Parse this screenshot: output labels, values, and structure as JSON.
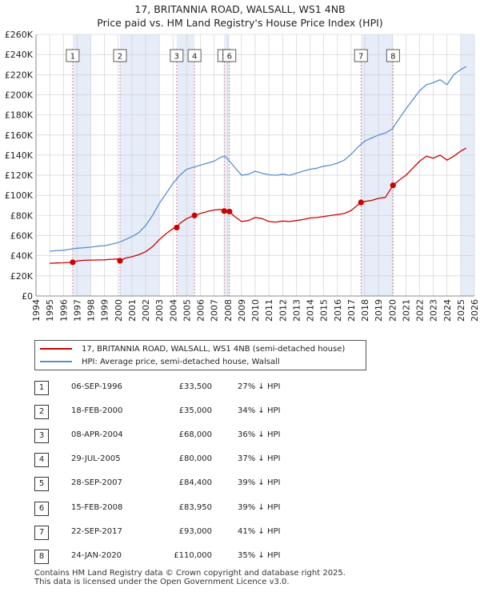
{
  "title_line1": "17, BRITANNIA ROAD, WALSALL, WS1 4NB",
  "title_line2": "Price paid vs. HM Land Registry's House Price Index (HPI)",
  "colors": {
    "property": "#cc0000",
    "hpi": "#5b8fd0",
    "shade": "#e6edf8",
    "marker_line": "#e07070"
  },
  "legend": {
    "property_label": "17, BRITANNIA ROAD, WALSALL, WS1 4NB (semi-detached house)",
    "hpi_label": "HPI: Average price, semi-detached house, Walsall"
  },
  "chart_data": {
    "type": "line",
    "xlim": [
      1994,
      2026
    ],
    "ylim": [
      0,
      260000
    ],
    "y_ticks": [
      0,
      20000,
      40000,
      60000,
      80000,
      100000,
      120000,
      140000,
      160000,
      180000,
      200000,
      220000,
      240000,
      260000
    ],
    "y_tick_labels": [
      "£0",
      "£20K",
      "£40K",
      "£60K",
      "£80K",
      "£100K",
      "£120K",
      "£140K",
      "£160K",
      "£180K",
      "£200K",
      "£220K",
      "£240K",
      "£260K"
    ],
    "x_ticks": [
      1994,
      1995,
      1996,
      1997,
      1998,
      1999,
      2000,
      2001,
      2002,
      2003,
      2004,
      2005,
      2006,
      2007,
      2008,
      2009,
      2010,
      2011,
      2012,
      2013,
      2014,
      2015,
      2016,
      2017,
      2018,
      2019,
      2020,
      2021,
      2022,
      2023,
      2024,
      2025,
      2026
    ],
    "x_tick_labels": [
      "1994",
      "1995",
      "1996",
      "1997",
      "1998",
      "1999",
      "2000",
      "2001",
      "2002",
      "2003",
      "2004",
      "2005",
      "2006",
      "2007",
      "2008",
      "2009",
      "2010",
      "2011",
      "2012",
      "2013",
      "2014",
      "2015",
      "2016",
      "2017",
      "2018",
      "2019",
      "2020",
      "2021",
      "2022",
      "2023",
      "2024",
      "2025",
      "2026"
    ],
    "shaded_ranges": [
      [
        1996.68,
        1998.0
      ],
      [
        2000.13,
        2003.0
      ],
      [
        2004.27,
        2005.57
      ],
      [
        2007.74,
        2008.12
      ],
      [
        2017.72,
        2020.06
      ],
      [
        2025.0,
        2026.0
      ]
    ],
    "series": [
      {
        "name": "HPI: Average price, semi-detached house, Walsall",
        "x": [
          1995.0,
          1995.5,
          1996.0,
          1996.5,
          1997.0,
          1997.5,
          1998.0,
          1998.5,
          1999.0,
          1999.5,
          2000.0,
          2000.5,
          2001.0,
          2001.5,
          2002.0,
          2002.5,
          2003.0,
          2003.5,
          2004.0,
          2004.5,
          2005.0,
          2005.5,
          2006.0,
          2006.5,
          2007.0,
          2007.5,
          2007.8,
          2008.0,
          2008.5,
          2009.0,
          2009.5,
          2010.0,
          2010.5,
          2011.0,
          2011.5,
          2012.0,
          2012.5,
          2013.0,
          2013.5,
          2014.0,
          2014.5,
          2015.0,
          2015.5,
          2016.0,
          2016.5,
          2017.0,
          2017.5,
          2018.0,
          2018.5,
          2019.0,
          2019.5,
          2020.0,
          2020.5,
          2021.0,
          2021.5,
          2022.0,
          2022.5,
          2023.0,
          2023.5,
          2024.0,
          2024.5,
          2025.0,
          2025.4
        ],
        "values": [
          44500,
          45000,
          45500,
          46500,
          47500,
          48000,
          48500,
          49500,
          50000,
          51500,
          53000,
          56000,
          59000,
          63000,
          70000,
          80000,
          92000,
          102000,
          112000,
          120000,
          126000,
          128000,
          130000,
          132000,
          134000,
          138000,
          139000,
          136000,
          128000,
          120000,
          121000,
          124000,
          122000,
          120500,
          120000,
          121000,
          120000,
          122000,
          124000,
          126000,
          127000,
          129000,
          130000,
          132000,
          135000,
          141000,
          148000,
          154000,
          157000,
          160000,
          162000,
          166000,
          176000,
          186000,
          195000,
          204000,
          210000,
          212000,
          215000,
          210000,
          220000,
          225000,
          228000
        ]
      },
      {
        "name": "17, BRITANNIA ROAD, WALSALL, WS1 4NB (semi-detached house)",
        "x": [
          1995.0,
          1995.5,
          1996.0,
          1996.68,
          1997.0,
          1997.5,
          1998.0,
          1998.5,
          1999.0,
          1999.5,
          2000.0,
          2000.13,
          2000.5,
          2001.0,
          2001.5,
          2002.0,
          2002.5,
          2003.0,
          2003.5,
          2004.0,
          2004.27,
          2004.5,
          2005.0,
          2005.57,
          2006.0,
          2006.5,
          2007.0,
          2007.5,
          2007.74,
          2008.12,
          2008.5,
          2009.0,
          2009.5,
          2010.0,
          2010.5,
          2011.0,
          2011.5,
          2012.0,
          2012.5,
          2013.0,
          2013.5,
          2014.0,
          2014.5,
          2015.0,
          2015.5,
          2016.0,
          2016.5,
          2017.0,
          2017.72,
          2018.0,
          2018.5,
          2019.0,
          2019.5,
          2020.06,
          2020.5,
          2021.0,
          2021.5,
          2022.0,
          2022.5,
          2023.0,
          2023.5,
          2024.0,
          2024.5,
          2025.0,
          2025.4
        ],
        "values": [
          32500,
          32800,
          33000,
          33500,
          34800,
          35500,
          35700,
          35800,
          35900,
          36500,
          36800,
          35000,
          37500,
          39000,
          41000,
          44000,
          49000,
          56000,
          62000,
          67000,
          68000,
          72000,
          77000,
          80000,
          82000,
          84000,
          85500,
          86000,
          84400,
          83950,
          79000,
          74000,
          75000,
          78000,
          77000,
          74000,
          73500,
          74500,
          74000,
          75000,
          76000,
          77500,
          78000,
          79000,
          80000,
          81000,
          82000,
          85000,
          93000,
          94000,
          95000,
          97000,
          98000,
          110000,
          115000,
          120000,
          127000,
          134000,
          139000,
          137000,
          140000,
          135000,
          139000,
          144000,
          147000
        ]
      }
    ],
    "sales": [
      {
        "id": "1",
        "x": 1996.68,
        "price": 33500
      },
      {
        "id": "2",
        "x": 2000.13,
        "price": 35000
      },
      {
        "id": "3",
        "x": 2004.27,
        "price": 68000
      },
      {
        "id": "4",
        "x": 2005.57,
        "price": 80000
      },
      {
        "id": "5",
        "x": 2007.74,
        "price": 84400
      },
      {
        "id": "6",
        "x": 2008.12,
        "price": 83950
      },
      {
        "id": "7",
        "x": 2017.72,
        "price": 93000
      },
      {
        "id": "8",
        "x": 2020.06,
        "price": 110000
      }
    ]
  },
  "transactions": [
    {
      "num": "1",
      "date": "06-SEP-1996",
      "price": "£33,500",
      "hpi": "27% ↓ HPI"
    },
    {
      "num": "2",
      "date": "18-FEB-2000",
      "price": "£35,000",
      "hpi": "34% ↓ HPI"
    },
    {
      "num": "3",
      "date": "08-APR-2004",
      "price": "£68,000",
      "hpi": "36% ↓ HPI"
    },
    {
      "num": "4",
      "date": "29-JUL-2005",
      "price": "£80,000",
      "hpi": "37% ↓ HPI"
    },
    {
      "num": "5",
      "date": "28-SEP-2007",
      "price": "£84,400",
      "hpi": "39% ↓ HPI"
    },
    {
      "num": "6",
      "date": "15-FEB-2008",
      "price": "£83,950",
      "hpi": "39% ↓ HPI"
    },
    {
      "num": "7",
      "date": "22-SEP-2017",
      "price": "£93,000",
      "hpi": "41% ↓ HPI"
    },
    {
      "num": "8",
      "date": "24-JAN-2020",
      "price": "£110,000",
      "hpi": "35% ↓ HPI"
    }
  ],
  "footer": {
    "line1": "Contains HM Land Registry data © Crown copyright and database right 2025.",
    "line2": "This data is licensed under the Open Government Licence v3.0."
  }
}
